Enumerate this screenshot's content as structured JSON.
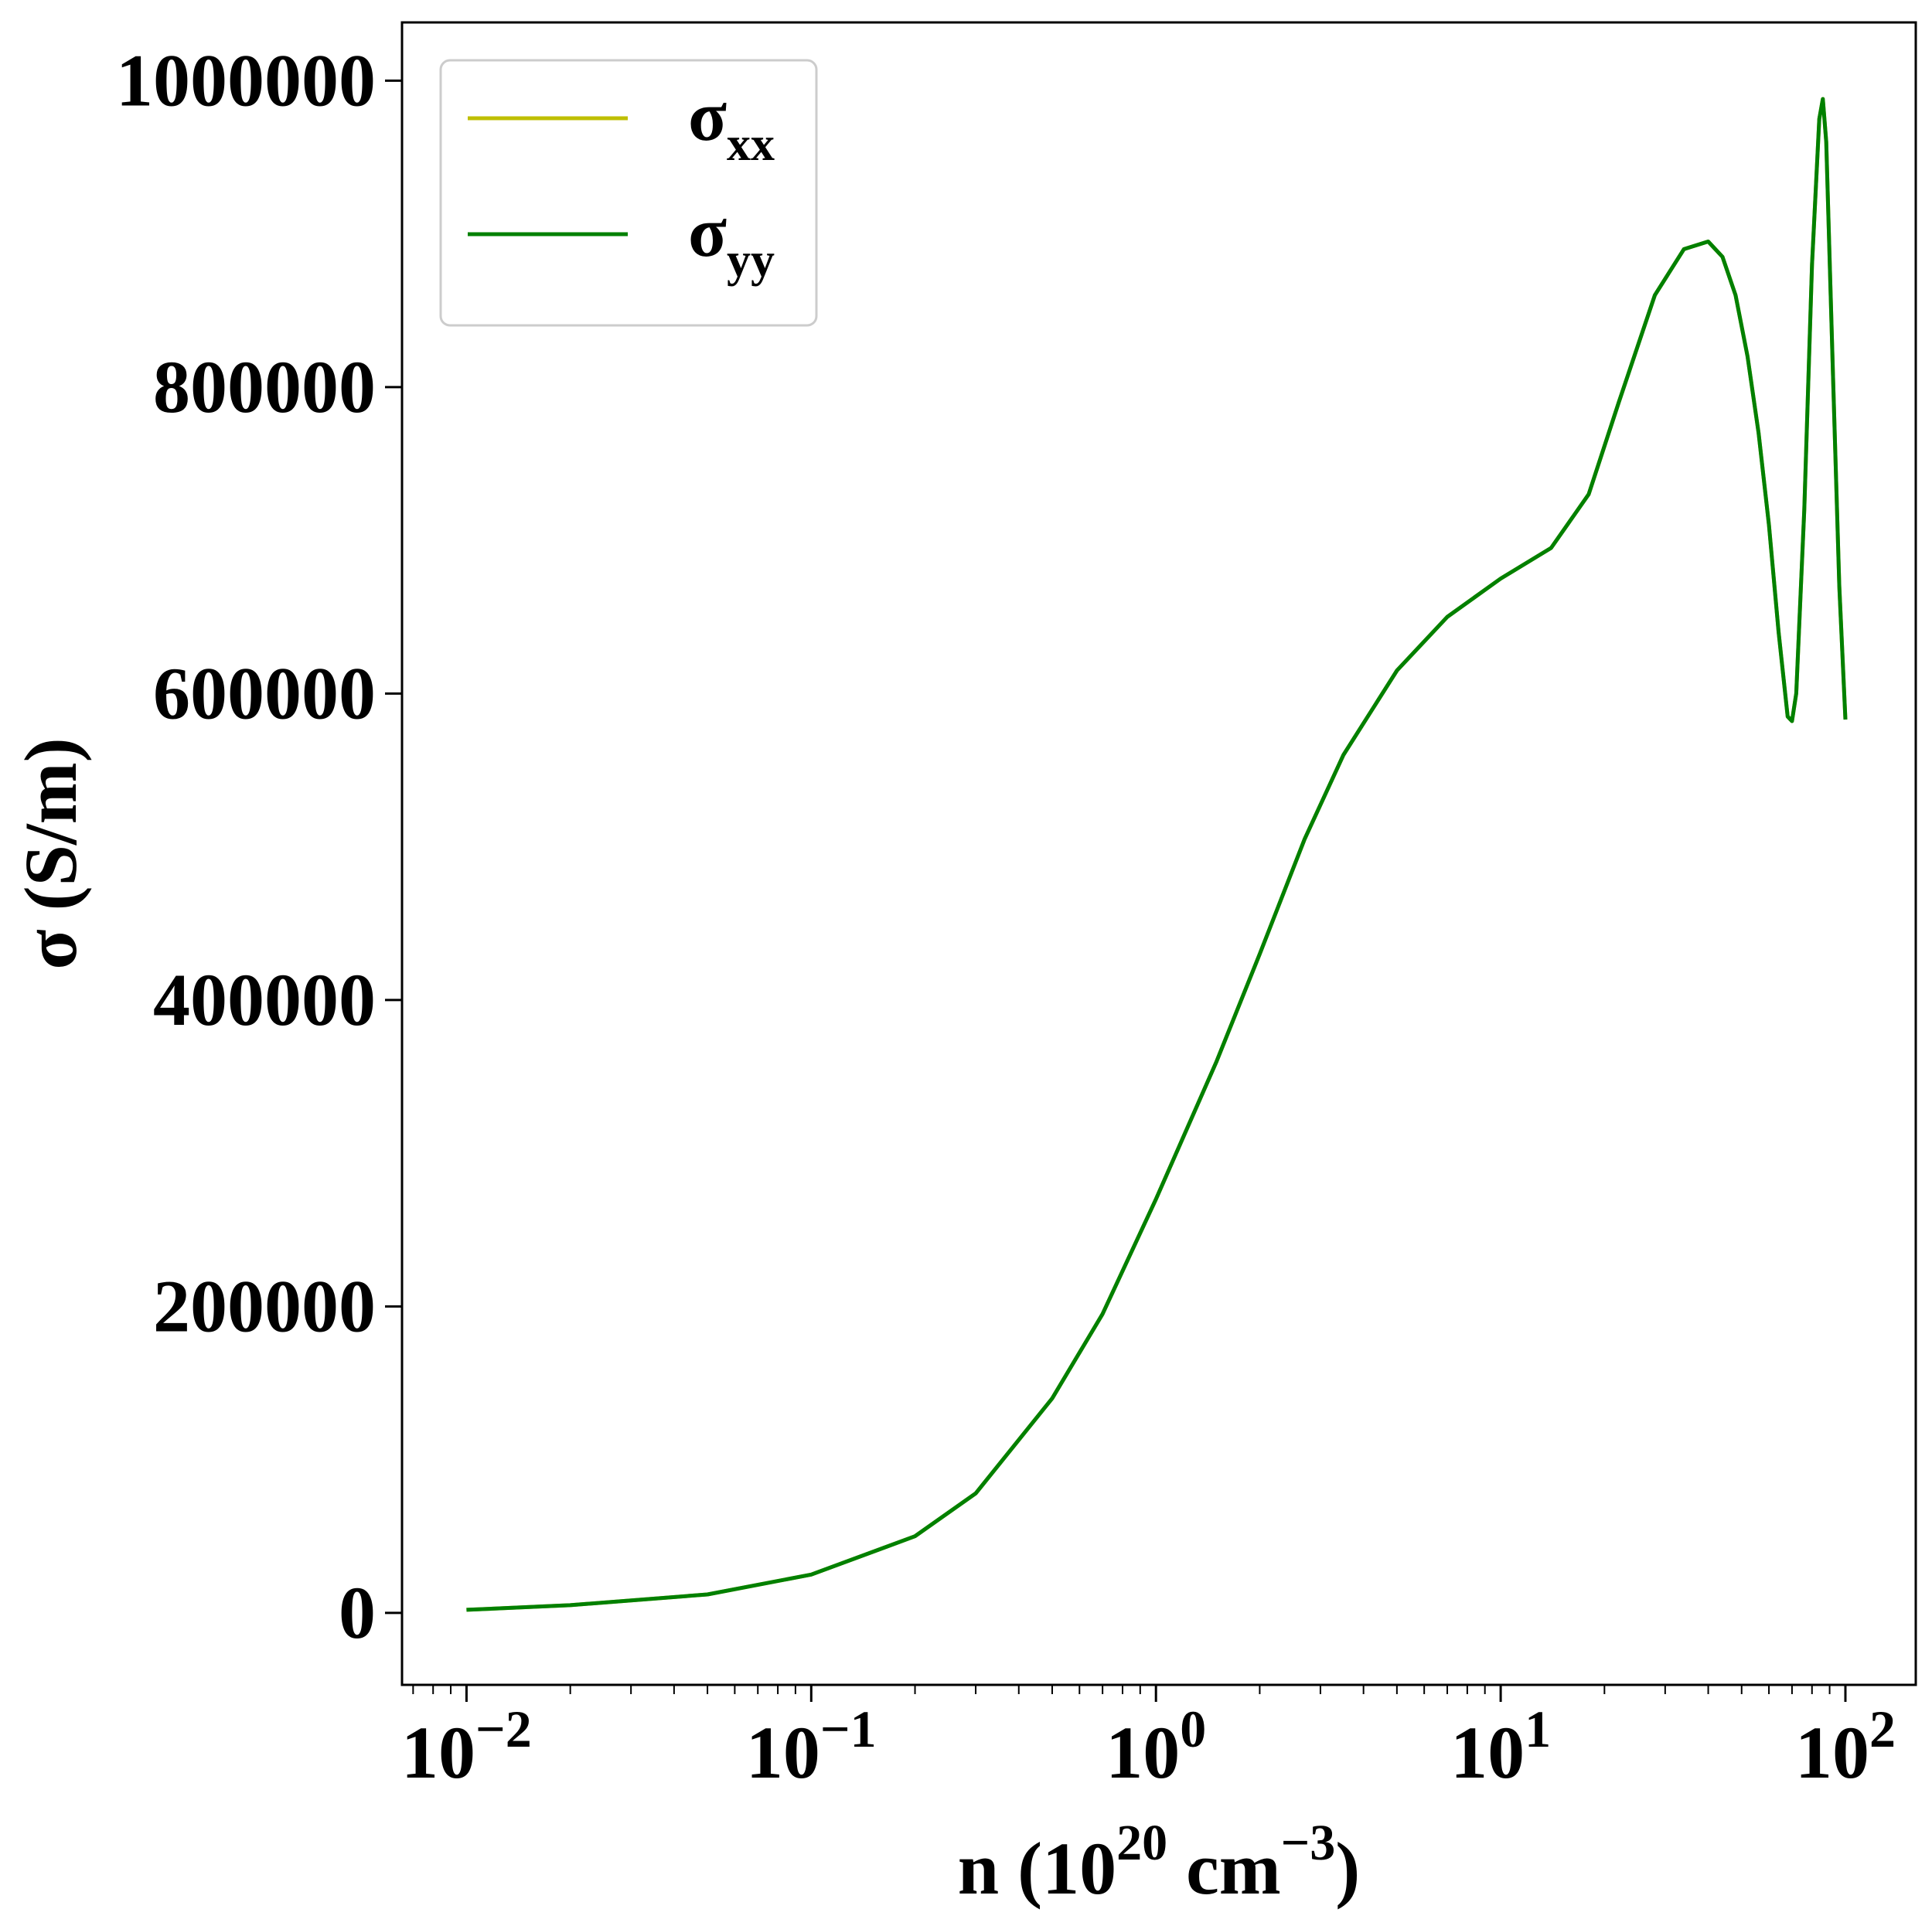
{
  "chart_data": {
    "type": "line",
    "xscale": "log",
    "xlim": [
      0.0065,
      160
    ],
    "ylim": [
      -47000,
      1038000
    ],
    "x_ticks": [
      {
        "value": 0.01,
        "base": "10",
        "exp": "−2"
      },
      {
        "value": 0.1,
        "base": "10",
        "exp": "−1"
      },
      {
        "value": 1,
        "base": "10",
        "exp": "0"
      },
      {
        "value": 10,
        "base": "10",
        "exp": "1"
      },
      {
        "value": 100,
        "base": "10",
        "exp": "2"
      }
    ],
    "y_ticks": [
      {
        "value": 0,
        "label": "0"
      },
      {
        "value": 200000,
        "label": "200000"
      },
      {
        "value": 400000,
        "label": "400000"
      },
      {
        "value": 600000,
        "label": "600000"
      },
      {
        "value": 800000,
        "label": "800000"
      },
      {
        "value": 1000000,
        "label": "1000000"
      }
    ],
    "xlabel": {
      "prefix": "n (10",
      "sup1": "20",
      "mid": " cm",
      "sup2": "−3",
      "suffix": ")"
    },
    "ylabel": "σ (S/m)",
    "grid": false,
    "legend_position": "top-left",
    "series": [
      {
        "name": "σ",
        "sub": "xx",
        "color": "#bfbf00",
        "x": [
          0.01,
          0.02,
          0.05,
          0.1,
          0.2,
          0.3,
          0.5,
          0.7,
          1,
          1.5,
          2,
          2.7,
          3.5,
          5,
          7,
          10,
          14,
          18,
          22,
          28,
          34,
          40,
          44,
          48,
          52,
          56,
          60,
          64,
          68,
          70,
          72,
          76,
          80,
          84,
          86,
          88,
          92,
          96,
          100
        ],
        "y": [
          2000,
          5000,
          12000,
          25000,
          50000,
          78000,
          140000,
          195000,
          270000,
          360000,
          430000,
          505000,
          560000,
          615000,
          650000,
          675000,
          695000,
          730000,
          790000,
          860000,
          890000,
          895000,
          885000,
          860000,
          820000,
          770000,
          710000,
          640000,
          585000,
          582000,
          600000,
          720000,
          880000,
          975000,
          988000,
          960000,
          810000,
          670000,
          583000
        ]
      },
      {
        "name": "σ",
        "sub": "yy",
        "color": "#008000",
        "x": [
          0.01,
          0.02,
          0.05,
          0.1,
          0.2,
          0.3,
          0.5,
          0.7,
          1,
          1.5,
          2,
          2.7,
          3.5,
          5,
          7,
          10,
          14,
          18,
          22,
          28,
          34,
          40,
          44,
          48,
          52,
          56,
          60,
          64,
          68,
          70,
          72,
          76,
          80,
          84,
          86,
          88,
          92,
          96,
          100
        ],
        "y": [
          2000,
          5000,
          12000,
          25000,
          50000,
          78000,
          140000,
          195000,
          270000,
          360000,
          430000,
          505000,
          560000,
          615000,
          650000,
          675000,
          695000,
          730000,
          790000,
          860000,
          890000,
          895000,
          885000,
          860000,
          820000,
          770000,
          710000,
          640000,
          585000,
          582000,
          600000,
          720000,
          880000,
          975000,
          988000,
          960000,
          810000,
          670000,
          583000
        ]
      }
    ]
  }
}
